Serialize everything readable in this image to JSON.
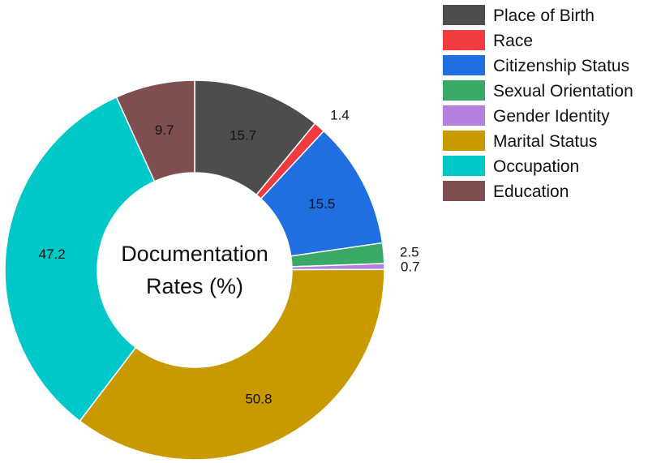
{
  "chart_data": {
    "type": "pie",
    "variant": "donut",
    "center_label_lines": [
      "Documentation",
      "Rates (%)"
    ],
    "categories": [
      "Place of Birth",
      "Race",
      "Citizenship Status",
      "Sexual Orientation",
      "Gender Identity",
      "Marital Status",
      "Occupation",
      "Education"
    ],
    "values": [
      15.7,
      1.4,
      15.5,
      2.5,
      0.7,
      50.8,
      47.2,
      9.7
    ],
    "value_labels": [
      "15.7",
      "1.4",
      "15.5",
      "2.5",
      "0.7",
      "50.8",
      "47.2",
      "9.7"
    ],
    "colors": [
      "#4d4d4d",
      "#f03c3f",
      "#1f6fe0",
      "#3aa866",
      "#b57fe0",
      "#c99a00",
      "#00c8c8",
      "#7f4f4f"
    ],
    "label_outside": [
      false,
      true,
      false,
      true,
      true,
      false,
      false,
      false
    ],
    "start_angle_deg": 0,
    "direction": "clockwise",
    "legend_position": "top-right",
    "title": ""
  }
}
